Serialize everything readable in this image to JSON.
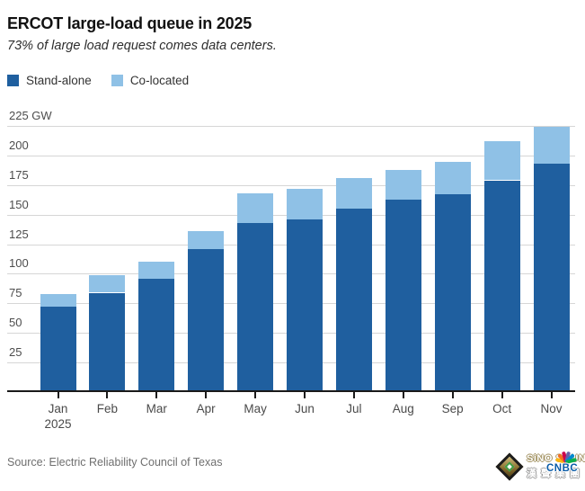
{
  "header": {
    "title": "ERCOT large-load queue in 2025",
    "subtitle": "73% of large load request comes data centers."
  },
  "legend": {
    "items": [
      {
        "label": "Stand-alone",
        "color": "#1f5f9f"
      },
      {
        "label": "Co-located",
        "color": "#8fc1e6"
      }
    ]
  },
  "chart_data": {
    "type": "bar",
    "stacked": true,
    "title": "ERCOT large-load queue in 2025",
    "subtitle": "73% of large load request comes data centers.",
    "unit": "GW",
    "categories": [
      "Jan",
      "Feb",
      "Mar",
      "Apr",
      "May",
      "Jun",
      "Jul",
      "Aug",
      "Sep",
      "Oct",
      "Nov"
    ],
    "x_sublabel": {
      "index": 0,
      "text": "2025"
    },
    "series": [
      {
        "name": "Stand-alone",
        "color": "#1f5f9f",
        "values": [
          72,
          84,
          96,
          121,
          143,
          146,
          155,
          163,
          167,
          179,
          193
        ]
      },
      {
        "name": "Co-located",
        "color": "#8fc1e6",
        "values": [
          11,
          15,
          14,
          15,
          25,
          26,
          26,
          25,
          28,
          33,
          31
        ]
      }
    ],
    "totals": [
      83,
      99,
      110,
      136,
      168,
      172,
      181,
      188,
      195,
      212,
      224
    ],
    "y_axis": {
      "min": 0,
      "max": 225,
      "tick_step": 25,
      "ticks": [
        25,
        50,
        75,
        100,
        125,
        150,
        175,
        200,
        225
      ],
      "top_tick_label": "225 GW"
    },
    "grid": true,
    "legend_position": "top",
    "gridline_color": "#d6d6d6",
    "axis_color": "#1a1a1a"
  },
  "footer": {
    "source": "Source: Electric Reliability Council of Texas",
    "watermark": {
      "brand": "SiNO SOUND",
      "brand_cn": "漢聲集團",
      "network": "CNBC",
      "peacock_colors": [
        "#fcb711",
        "#f37021",
        "#cc004c",
        "#6460aa",
        "#0089d0",
        "#0db14b"
      ]
    }
  }
}
